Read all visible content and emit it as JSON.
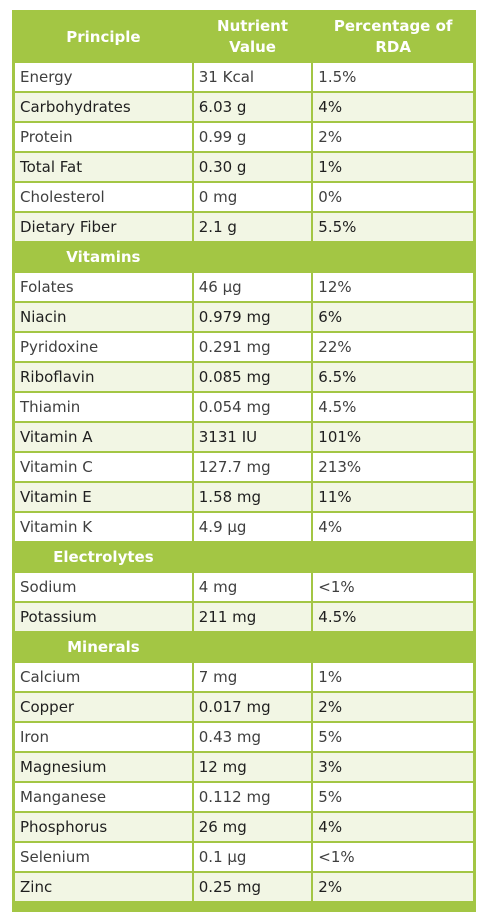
{
  "header": {
    "principle": "Principle",
    "nutrient_value": "Nutrient Value",
    "rda": "Percentage of RDA"
  },
  "groups": [
    {
      "rows": [
        {
          "name": "Energy",
          "value": "31 Kcal",
          "rda": "1.5%"
        },
        {
          "name": "Carbohydrates",
          "value": "6.03 g",
          "rda": "4%"
        },
        {
          "name": "Protein",
          "value": "0.99 g",
          "rda": "2%"
        },
        {
          "name": "Total Fat",
          "value": "0.30 g",
          "rda": "1%"
        },
        {
          "name": "Cholesterol",
          "value": "0 mg",
          "rda": "0%"
        },
        {
          "name": "Dietary Fiber",
          "value": "2.1 g",
          "rda": "5.5%"
        }
      ]
    },
    {
      "title": "Vitamins",
      "rows": [
        {
          "name": "Folates",
          "value": "46 µg",
          "rda": "12%"
        },
        {
          "name": "Niacin",
          "value": "0.979 mg",
          "rda": "6%"
        },
        {
          "name": "Pyridoxine",
          "value": "0.291 mg",
          "rda": "22%"
        },
        {
          "name": "Riboflavin",
          "value": "0.085 mg",
          "rda": "6.5%"
        },
        {
          "name": "Thiamin",
          "value": "0.054 mg",
          "rda": "4.5%"
        },
        {
          "name": "Vitamin A",
          "value": "3131 IU",
          "rda": "101%"
        },
        {
          "name": "Vitamin C",
          "value": "127.7 mg",
          "rda": "213%"
        },
        {
          "name": "Vitamin E",
          "value": "1.58 mg",
          "rda": "11%"
        },
        {
          "name": "Vitamin K",
          "value": "4.9 µg",
          "rda": "4%"
        }
      ]
    },
    {
      "title": "Electrolytes",
      "rows": [
        {
          "name": "Sodium",
          "value": "4 mg",
          "rda": "<1%"
        },
        {
          "name": "Potassium",
          "value": "211 mg",
          "rda": "4.5%"
        }
      ]
    },
    {
      "title": "Minerals",
      "rows": [
        {
          "name": "Calcium",
          "value": "7 mg",
          "rda": "1%"
        },
        {
          "name": "Copper",
          "value": "0.017 mg",
          "rda": "2%"
        },
        {
          "name": "Iron",
          "value": "0.43 mg",
          "rda": "5%"
        },
        {
          "name": "Magnesium",
          "value": "12 mg",
          "rda": "3%"
        },
        {
          "name": "Manganese",
          "value": "0.112 mg",
          "rda": "5%"
        },
        {
          "name": "Phosphorus",
          "value": "26 mg",
          "rda": "4%"
        },
        {
          "name": "Selenium",
          "value": "0.1 µg",
          "rda": "<1%"
        },
        {
          "name": "Zinc",
          "value": "0.25 mg",
          "rda": "2%"
        }
      ]
    }
  ],
  "colors": {
    "header_green": "#a3c644",
    "row_alt": "#f2f6e4",
    "row_white": "#ffffff"
  }
}
